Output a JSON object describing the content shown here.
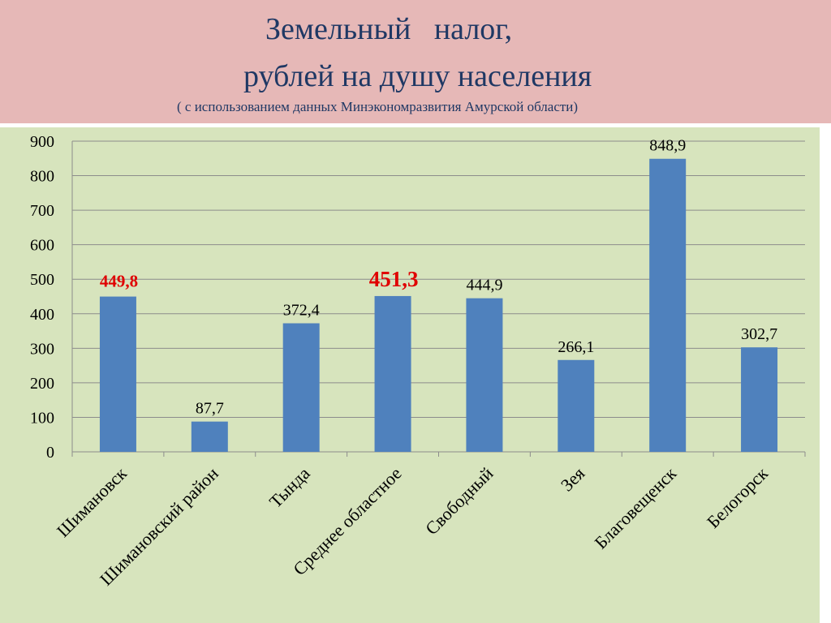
{
  "header": {
    "title_line1": "Земельный   налог,",
    "title_line2": "рублей на душу населения",
    "subtitle": "( с использованием данных Минэкономразвития Амурской области)"
  },
  "colors": {
    "header_bg": "#e6b8b7",
    "plot_bg": "#d7e4bd",
    "bar": "#4f81bd",
    "highlight_label": "#e00000",
    "title": "#1f3864"
  },
  "chart_data": {
    "type": "bar",
    "title": "Земельный налог, рублей на душу населения",
    "categories": [
      "Шимановск",
      "Шимановский район",
      "Тында",
      "Среднее областное",
      "Свободный",
      "Зея",
      "Благовещенск",
      "Белогорск"
    ],
    "values": [
      449.8,
      87.7,
      372.4,
      451.3,
      444.9,
      266.1,
      848.9,
      302.7
    ],
    "value_labels": [
      "449,8",
      "87,7",
      "372,4",
      "451,3",
      "444,9",
      "266,1",
      "848,9",
      "302,7"
    ],
    "highlighted": [
      true,
      false,
      false,
      true,
      false,
      false,
      false,
      false
    ],
    "ylim": [
      0,
      900
    ],
    "yticks": [
      0,
      100,
      200,
      300,
      400,
      500,
      600,
      700,
      800,
      900
    ],
    "grid": true,
    "legend": "none"
  }
}
